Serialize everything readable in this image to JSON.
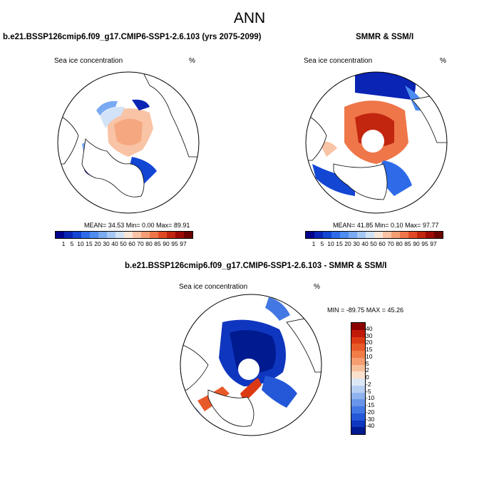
{
  "main_title": "ANN",
  "chart_data": [
    {
      "type": "heatmap",
      "projection": "north-polar-stereographic",
      "title": "b.e21.BSSP126cmip6.f09_g17.CMIP6-SSP1-2.6.103 (yrs 2075-2099)",
      "left_label": "Sea ice concentration",
      "right_label": "%",
      "stats": {
        "mean": "34.53",
        "min": "0.00",
        "max": "89.91"
      },
      "stats_text": "MEAN=  34.53  Min=   0.00  Max=  89.91",
      "colorbar_ticks": [
        "1",
        "5",
        "10",
        "15",
        "20",
        "30",
        "40",
        "50",
        "60",
        "70",
        "80",
        "85",
        "90",
        "95",
        "97"
      ],
      "colorbar_colors": [
        "#00008b",
        "#0a24b4",
        "#1446d4",
        "#2e6be8",
        "#4d8cf0",
        "#7aaaf2",
        "#a6c8f4",
        "#d2e2f7",
        "#fbe6da",
        "#f9c3a5",
        "#f59e74",
        "#ee7649",
        "#e04a24",
        "#c2260f",
        "#9b0a04",
        "#6b0000"
      ],
      "colorbar_orientation": "horizontal"
    },
    {
      "type": "heatmap",
      "projection": "north-polar-stereographic",
      "title": "SMMR & SSM/I",
      "left_label": "Sea ice concentration",
      "right_label": "%",
      "stats": {
        "mean": "41.85",
        "min": "0.10",
        "max": "97.77"
      },
      "stats_text": "MEAN=  41.85  Min=   0.10  Max=  97.77",
      "colorbar_ticks": [
        "1",
        "5",
        "10",
        "15",
        "20",
        "30",
        "40",
        "50",
        "60",
        "70",
        "80",
        "85",
        "90",
        "95",
        "97"
      ],
      "colorbar_colors": [
        "#00008b",
        "#0a24b4",
        "#1446d4",
        "#2e6be8",
        "#4d8cf0",
        "#7aaaf2",
        "#a6c8f4",
        "#d2e2f7",
        "#fbe6da",
        "#f9c3a5",
        "#f59e74",
        "#ee7649",
        "#e04a24",
        "#c2260f",
        "#9b0a04",
        "#6b0000"
      ],
      "colorbar_orientation": "horizontal"
    },
    {
      "type": "heatmap",
      "projection": "north-polar-stereographic",
      "title": "b.e21.BSSP126cmip6.f09_g17.CMIP6-SSP1-2.6.103 - SMMR & SSM/I",
      "left_label": "Sea ice concentration",
      "right_label": "%",
      "stats": {
        "min": "-89.75",
        "max": "45.26"
      },
      "stats_text": "MIN = -89.75 MAX =  45.26",
      "colorbar_ticks": [
        "40",
        "30",
        "20",
        "15",
        "10",
        "5",
        "2",
        "0",
        "-2",
        "-5",
        "-10",
        "-15",
        "-20",
        "-30",
        "-40"
      ],
      "colorbar_colors": [
        "#8b0000",
        "#c01a08",
        "#dc3a14",
        "#e95a2a",
        "#f07c48",
        "#f59d70",
        "#f8bf9c",
        "#fbe0cc",
        "#dde8f7",
        "#b7cff3",
        "#8fb3ef",
        "#6895ea",
        "#4377e3",
        "#2458d8",
        "#0f36bf",
        "#001a90"
      ],
      "colorbar_orientation": "vertical"
    }
  ]
}
